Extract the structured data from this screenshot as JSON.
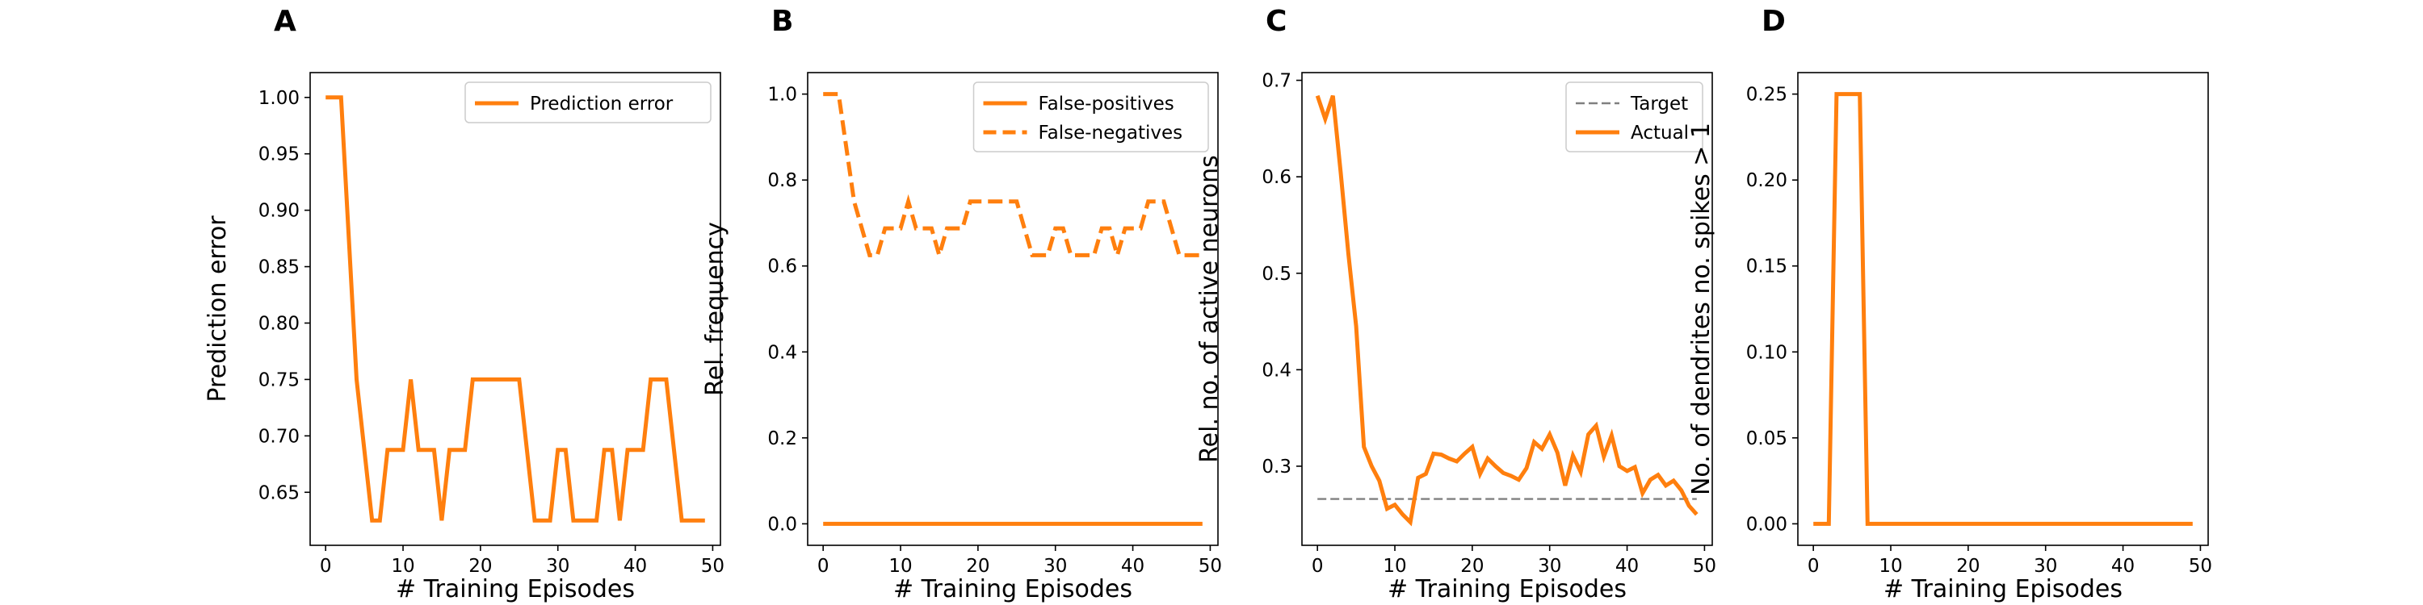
{
  "chart_data": [
    {
      "type": "line",
      "panel": "A",
      "xlabel": "# Training Episodes",
      "ylabel": "Prediction error",
      "xlim": [
        -2,
        51
      ],
      "ylim": [
        0.603,
        1.022
      ],
      "xticks": [
        0,
        10,
        20,
        30,
        40,
        50
      ],
      "yticks": [
        0.65,
        0.7,
        0.75,
        0.8,
        0.85,
        0.9,
        0.95,
        1.0
      ],
      "ytick_labels": [
        "0.65",
        "0.70",
        "0.75",
        "0.80",
        "0.85",
        "0.90",
        "0.95",
        "1.00"
      ],
      "legend": "upper right",
      "grid": false,
      "series": [
        {
          "name": "Prediction error",
          "color": "#ff7f0e",
          "style": "solid",
          "x": [
            0,
            1,
            2,
            3,
            4,
            5,
            6,
            7,
            8,
            9,
            10,
            11,
            12,
            13,
            14,
            15,
            16,
            17,
            18,
            19,
            20,
            21,
            22,
            23,
            24,
            25,
            26,
            27,
            28,
            29,
            30,
            31,
            32,
            33,
            34,
            35,
            36,
            37,
            38,
            39,
            40,
            41,
            42,
            43,
            44,
            45,
            46,
            47,
            48,
            49
          ],
          "y": [
            1.0,
            1.0,
            1.0,
            0.875,
            0.75,
            0.6875,
            0.625,
            0.625,
            0.6875,
            0.6875,
            0.6875,
            0.75,
            0.6875,
            0.6875,
            0.6875,
            0.625,
            0.6875,
            0.6875,
            0.6875,
            0.75,
            0.75,
            0.75,
            0.75,
            0.75,
            0.75,
            0.75,
            0.6875,
            0.625,
            0.625,
            0.625,
            0.6875,
            0.6875,
            0.625,
            0.625,
            0.625,
            0.625,
            0.6875,
            0.6875,
            0.625,
            0.6875,
            0.6875,
            0.6875,
            0.75,
            0.75,
            0.75,
            0.6875,
            0.625,
            0.625,
            0.625,
            0.625
          ]
        }
      ]
    },
    {
      "type": "line",
      "panel": "B",
      "xlabel": "# Training Episodes",
      "ylabel": "Rel. frequency",
      "xlim": [
        -2,
        51
      ],
      "ylim": [
        -0.05,
        1.05
      ],
      "xticks": [
        0,
        10,
        20,
        30,
        40,
        50
      ],
      "yticks": [
        0.0,
        0.2,
        0.4,
        0.6,
        0.8,
        1.0
      ],
      "ytick_labels": [
        "0.0",
        "0.2",
        "0.4",
        "0.6",
        "0.8",
        "1.0"
      ],
      "legend": "upper right",
      "grid": false,
      "series": [
        {
          "name": "False-positives",
          "color": "#ff7f0e",
          "style": "solid",
          "x": [
            0,
            49
          ],
          "y": [
            0.0,
            0.0
          ]
        },
        {
          "name": "False-negatives",
          "color": "#ff7f0e",
          "style": "dashed",
          "x": [
            0,
            1,
            2,
            3,
            4,
            5,
            6,
            7,
            8,
            9,
            10,
            11,
            12,
            13,
            14,
            15,
            16,
            17,
            18,
            19,
            20,
            21,
            22,
            23,
            24,
            25,
            26,
            27,
            28,
            29,
            30,
            31,
            32,
            33,
            34,
            35,
            36,
            37,
            38,
            39,
            40,
            41,
            42,
            43,
            44,
            45,
            46,
            47,
            48,
            49
          ],
          "y": [
            1.0,
            1.0,
            1.0,
            0.875,
            0.75,
            0.6875,
            0.625,
            0.625,
            0.6875,
            0.6875,
            0.6875,
            0.75,
            0.6875,
            0.6875,
            0.6875,
            0.625,
            0.6875,
            0.6875,
            0.6875,
            0.75,
            0.75,
            0.75,
            0.75,
            0.75,
            0.75,
            0.75,
            0.6875,
            0.625,
            0.625,
            0.625,
            0.6875,
            0.6875,
            0.625,
            0.625,
            0.625,
            0.625,
            0.6875,
            0.6875,
            0.625,
            0.6875,
            0.6875,
            0.6875,
            0.75,
            0.75,
            0.75,
            0.6875,
            0.625,
            0.625,
            0.625,
            0.625
          ]
        }
      ]
    },
    {
      "type": "line",
      "panel": "C",
      "xlabel": "# Training Episodes",
      "ylabel": "Rel. no. of active neurons",
      "xlim": [
        -2,
        51
      ],
      "ylim": [
        0.218,
        0.708
      ],
      "xticks": [
        0,
        10,
        20,
        30,
        40,
        50
      ],
      "yticks": [
        0.3,
        0.4,
        0.5,
        0.6,
        0.7
      ],
      "ytick_labels": [
        "0.3",
        "0.4",
        "0.5",
        "0.6",
        "0.7"
      ],
      "legend": "upper right",
      "grid": false,
      "series": [
        {
          "name": "Target",
          "color": "#808080",
          "style": "dashed",
          "x": [
            0,
            49
          ],
          "y": [
            0.266,
            0.266
          ]
        },
        {
          "name": "Actual",
          "color": "#ff7f0e",
          "style": "solid",
          "x": [
            0,
            1,
            2,
            3,
            4,
            5,
            6,
            7,
            8,
            9,
            10,
            11,
            12,
            13,
            14,
            15,
            16,
            17,
            18,
            19,
            20,
            21,
            22,
            23,
            24,
            25,
            26,
            27,
            28,
            29,
            30,
            31,
            32,
            33,
            34,
            35,
            36,
            37,
            38,
            39,
            40,
            41,
            42,
            43,
            44,
            45,
            46,
            47,
            48,
            49
          ],
          "y": [
            0.684,
            0.66,
            0.684,
            0.605,
            0.52,
            0.445,
            0.32,
            0.3,
            0.285,
            0.256,
            0.26,
            0.25,
            0.242,
            0.288,
            0.292,
            0.313,
            0.312,
            0.308,
            0.305,
            0.313,
            0.32,
            0.292,
            0.308,
            0.3,
            0.293,
            0.29,
            0.286,
            0.298,
            0.325,
            0.318,
            0.333,
            0.314,
            0.28,
            0.311,
            0.294,
            0.333,
            0.342,
            0.31,
            0.332,
            0.3,
            0.295,
            0.299,
            0.272,
            0.286,
            0.291,
            0.28,
            0.285,
            0.275,
            0.259,
            0.25
          ]
        }
      ]
    },
    {
      "type": "line",
      "panel": "D",
      "xlabel": "# Training Episodes",
      "ylabel": "No. of dendrites no. spikes > 1",
      "xlim": [
        -2,
        51
      ],
      "ylim": [
        -0.0125,
        0.2625
      ],
      "xticks": [
        0,
        10,
        20,
        30,
        40,
        50
      ],
      "yticks": [
        0.0,
        0.05,
        0.1,
        0.15,
        0.2,
        0.25
      ],
      "ytick_labels": [
        "0.00",
        "0.05",
        "0.10",
        "0.15",
        "0.20",
        "0.25"
      ],
      "grid": false,
      "series": [
        {
          "color": "#ff7f0e",
          "style": "solid",
          "x": [
            0,
            1,
            2,
            3,
            4,
            5,
            6,
            7,
            8,
            49
          ],
          "y": [
            0.0,
            0.0,
            0.0,
            0.25,
            0.25,
            0.25,
            0.25,
            0.0,
            0.0,
            0.0
          ]
        }
      ]
    }
  ]
}
